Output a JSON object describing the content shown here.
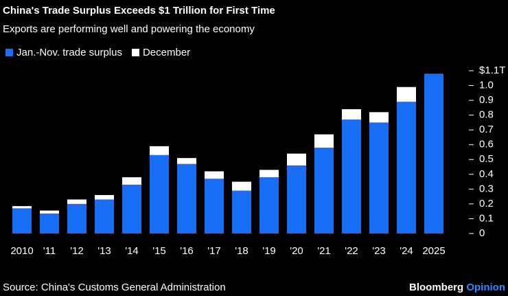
{
  "chart_data": {
    "type": "stacked_bar",
    "title": "China's Trade Surplus Exceeds $1 Trillion for First Time",
    "subtitle": "Exports are performing well and powering the economy",
    "categories": [
      "2010",
      "'11",
      "'12",
      "'13",
      "'14",
      "'15",
      "'16",
      "'17",
      "'18",
      "'19",
      "'20",
      "'21",
      "'22",
      "'23",
      "'24",
      "2025"
    ],
    "series": [
      {
        "name": "Jan.-Nov. trade surplus",
        "color": "#1a6ef5",
        "values": [
          0.17,
          0.135,
          0.2,
          0.23,
          0.33,
          0.53,
          0.47,
          0.37,
          0.29,
          0.38,
          0.46,
          0.58,
          0.77,
          0.75,
          0.89,
          1.08
        ]
      },
      {
        "name": "December",
        "color": "#ffffff",
        "values": [
          0.015,
          0.02,
          0.03,
          0.03,
          0.05,
          0.06,
          0.04,
          0.05,
          0.06,
          0.05,
          0.08,
          0.09,
          0.07,
          0.07,
          0.1,
          null
        ]
      }
    ],
    "ylim": [
      0,
      1.1
    ],
    "yticks": [
      0,
      0.1,
      0.2,
      0.3,
      0.4,
      0.5,
      0.6,
      0.7,
      0.8,
      0.9,
      {
        "value": 1.0,
        "label": "1.0"
      },
      {
        "value": 1.1,
        "label": "$1.1T"
      }
    ],
    "y_axis_side": "right",
    "legend_position": "top-left",
    "source": "Source: China's Customs General Administration",
    "brand": {
      "name": "Bloomberg",
      "suffix": "Opinion"
    }
  }
}
